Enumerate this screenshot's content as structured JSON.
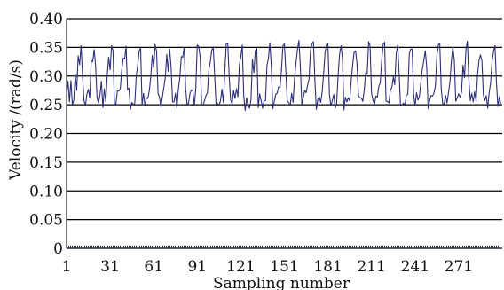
{
  "chart_data": {
    "type": "line",
    "xlabel": "Sampling number",
    "ylabel": "Velocity /(rad/s)",
    "xlim": [
      1,
      301
    ],
    "ylim": [
      0,
      0.4
    ],
    "x_tick_labels": [
      "1",
      "31",
      "61",
      "91",
      "121",
      "151",
      "181",
      "211",
      "241",
      "271"
    ],
    "x_ticks": [
      1,
      31,
      61,
      91,
      121,
      151,
      181,
      211,
      241,
      271
    ],
    "y_tick_labels": [
      "0",
      "0.05",
      "0.10",
      "0.15",
      "0.20",
      "0.25",
      "0.30",
      "0.35",
      "0.40"
    ],
    "y_ticks": [
      0,
      0.05,
      0.1,
      0.15,
      0.2,
      0.25,
      0.3,
      0.35,
      0.4
    ],
    "grid": true,
    "series": [
      {
        "color": "#2b2f7a",
        "x": [
          1,
          2,
          3,
          4,
          5,
          6,
          7,
          8,
          9,
          10,
          11,
          12,
          13,
          14,
          15,
          16,
          17,
          18,
          19,
          20,
          21,
          22,
          23,
          24,
          25,
          26,
          27,
          28,
          29,
          30,
          31,
          32,
          33,
          34,
          35,
          36,
          37,
          38,
          39,
          40,
          41,
          42,
          43,
          44,
          45,
          46,
          47,
          48,
          49,
          50,
          51,
          52,
          53,
          54,
          55,
          56,
          57,
          58,
          59,
          60,
          61,
          62,
          63,
          64,
          65,
          66,
          67,
          68,
          69,
          70,
          71,
          72,
          73,
          74,
          75,
          76,
          77,
          78,
          79,
          80,
          81,
          82,
          83,
          84,
          85,
          86,
          87,
          88,
          89,
          90,
          91,
          92,
          93,
          94,
          95,
          96,
          97,
          98,
          99,
          100,
          101,
          102,
          103,
          104,
          105,
          106,
          107,
          108,
          109,
          110,
          111,
          112,
          113,
          114,
          115,
          116,
          117,
          118,
          119,
          120,
          121,
          122,
          123,
          124,
          125,
          126,
          127,
          128,
          129,
          130,
          131,
          132,
          133,
          134,
          135,
          136,
          137,
          138,
          139,
          140,
          141,
          142,
          143,
          144,
          145,
          146,
          147,
          148,
          149,
          150,
          151,
          152,
          153,
          154,
          155,
          156,
          157,
          158,
          159,
          160,
          161,
          162,
          163,
          164,
          165,
          166,
          167,
          168,
          169,
          170,
          171,
          172,
          173,
          174,
          175,
          176,
          177,
          178,
          179,
          180,
          181,
          182,
          183,
          184,
          185,
          186,
          187,
          188,
          189,
          190,
          191,
          192,
          193,
          194,
          195,
          196,
          197,
          198,
          199,
          200,
          201,
          202,
          203,
          204,
          205,
          206,
          207,
          208,
          209,
          210,
          211,
          212,
          213,
          214,
          215,
          216,
          217,
          218,
          219,
          220,
          221,
          222,
          223,
          224,
          225,
          226,
          227,
          228,
          229,
          230,
          231,
          232,
          233,
          234,
          235,
          236,
          237,
          238,
          239,
          240,
          241,
          242,
          243,
          244,
          245,
          246,
          247,
          248,
          249,
          250,
          251,
          252,
          253,
          254,
          255,
          256,
          257,
          258,
          259,
          260,
          261,
          262,
          263,
          264,
          265,
          266,
          267,
          268,
          269,
          270,
          271,
          272,
          273,
          274,
          275,
          276,
          277,
          278,
          279,
          280,
          281,
          282,
          283,
          284,
          285,
          286,
          287,
          288,
          289,
          290,
          291,
          292,
          293,
          294,
          295,
          296,
          297,
          298,
          299,
          300
        ],
        "y": [
          0.268,
          0.291,
          0.255,
          0.292,
          0.25,
          0.258,
          0.302,
          0.275,
          0.335,
          0.32,
          0.353,
          0.302,
          0.257,
          0.249,
          0.268,
          0.277,
          0.262,
          0.327,
          0.325,
          0.346,
          0.318,
          0.262,
          0.253,
          0.267,
          0.291,
          0.245,
          0.278,
          0.255,
          0.301,
          0.333,
          0.311,
          0.353,
          0.344,
          0.25,
          0.252,
          0.274,
          0.274,
          0.278,
          0.31,
          0.331,
          0.33,
          0.352,
          0.276,
          0.279,
          0.242,
          0.254,
          0.25,
          0.253,
          0.301,
          0.319,
          0.343,
          0.349,
          0.25,
          0.27,
          0.248,
          0.262,
          0.261,
          0.275,
          0.299,
          0.336,
          0.315,
          0.355,
          0.343,
          0.27,
          0.263,
          0.247,
          0.264,
          0.28,
          0.297,
          0.338,
          0.308,
          0.347,
          0.315,
          0.255,
          0.255,
          0.27,
          0.244,
          0.277,
          0.297,
          0.334,
          0.333,
          0.35,
          0.278,
          0.251,
          0.253,
          0.27,
          0.276,
          0.274,
          0.248,
          0.279,
          0.354,
          0.352,
          0.333,
          0.251,
          0.249,
          0.257,
          0.266,
          0.271,
          0.311,
          0.325,
          0.345,
          0.351,
          0.3,
          0.248,
          0.252,
          0.249,
          0.257,
          0.277,
          0.254,
          0.309,
          0.357,
          0.357,
          0.299,
          0.258,
          0.252,
          0.275,
          0.261,
          0.278,
          0.264,
          0.319,
          0.334,
          0.354,
          0.266,
          0.24,
          0.262,
          0.248,
          0.244,
          0.259,
          0.329,
          0.306,
          0.344,
          0.349,
          0.245,
          0.269,
          0.257,
          0.244,
          0.257,
          0.257,
          0.318,
          0.331,
          0.358,
          0.317,
          0.243,
          0.255,
          0.268,
          0.27,
          0.281,
          0.28,
          0.311,
          0.353,
          0.356,
          0.308,
          0.256,
          0.254,
          0.248,
          0.27,
          0.254,
          0.296,
          0.323,
          0.346,
          0.362,
          0.317,
          0.25,
          0.263,
          0.275,
          0.271,
          0.284,
          0.295,
          0.345,
          0.356,
          0.36,
          0.293,
          0.242,
          0.259,
          0.264,
          0.254,
          0.272,
          0.304,
          0.341,
          0.355,
          0.356,
          0.269,
          0.248,
          0.257,
          0.268,
          0.244,
          0.253,
          0.301,
          0.338,
          0.353,
          0.331,
          0.241,
          0.263,
          0.255,
          0.262,
          0.257,
          0.292,
          0.319,
          0.341,
          0.344,
          0.322,
          0.266,
          0.262,
          0.262,
          0.256,
          0.276,
          0.306,
          0.303,
          0.36,
          0.353,
          0.27,
          0.258,
          0.25,
          0.265,
          0.263,
          0.282,
          0.288,
          0.327,
          0.355,
          0.359,
          0.256,
          0.256,
          0.253,
          0.276,
          0.28,
          0.298,
          0.285,
          0.339,
          0.354,
          0.304,
          0.248,
          0.249,
          0.253,
          0.249,
          0.267,
          0.268,
          0.339,
          0.347,
          0.347,
          0.268,
          0.248,
          0.271,
          0.258,
          0.265,
          0.29,
          0.312,
          0.327,
          0.344,
          0.316,
          0.243,
          0.257,
          0.266,
          0.265,
          0.271,
          0.282,
          0.335,
          0.354,
          0.357,
          0.278,
          0.252,
          0.251,
          0.266,
          0.253,
          0.271,
          0.29,
          0.327,
          0.35,
          0.328,
          0.256,
          0.262,
          0.269,
          0.263,
          0.272,
          0.319,
          0.297,
          0.346,
          0.361,
          0.294,
          0.257,
          0.27,
          0.255,
          0.273,
          0.256,
          0.302,
          0.327,
          0.337,
          0.327,
          0.268,
          0.257,
          0.266,
          0.244,
          0.271,
          0.288,
          0.325,
          0.343,
          0.353,
          0.29,
          0.247,
          0.264,
          0.252
        ]
      },
      {
        "color": "#2b2f7a",
        "x": [
          1,
          300
        ],
        "y": [
          0.003,
          0.003
        ]
      }
    ]
  }
}
